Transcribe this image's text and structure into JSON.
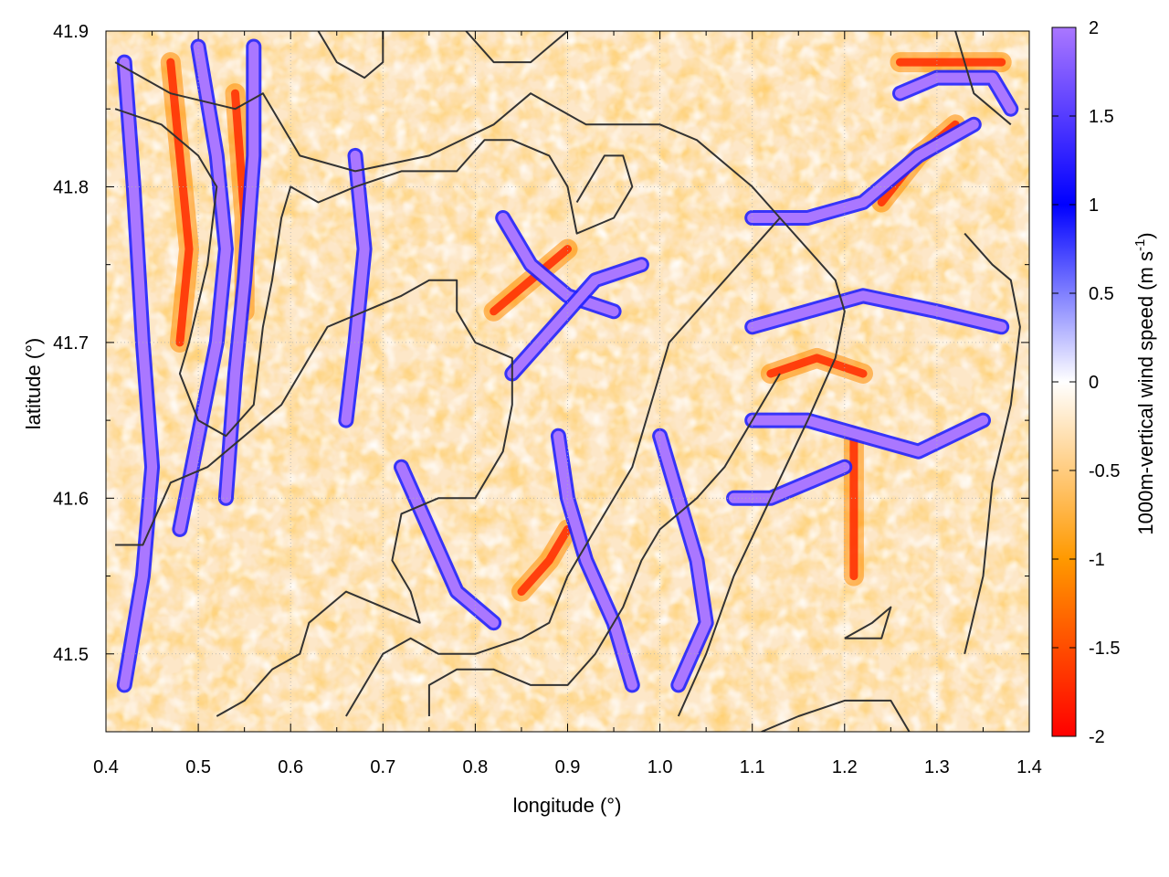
{
  "chart_data": {
    "type": "heatmap",
    "title": "",
    "xlabel": "longitude (°)",
    "ylabel": "latitude (°)",
    "xlim": [
      0.4,
      1.4
    ],
    "ylim": [
      41.45,
      41.9
    ],
    "xticks": [
      "0.4",
      "0.5",
      "0.6",
      "0.7",
      "0.8",
      "0.9",
      "1.0",
      "1.1",
      "1.2",
      "1.3",
      "1.4"
    ],
    "xtick_values": [
      0.4,
      0.5,
      0.6,
      0.7,
      0.8,
      0.9,
      1.0,
      1.1,
      1.2,
      1.3,
      1.4
    ],
    "yticks": [
      "41.5",
      "41.6",
      "41.7",
      "41.8",
      "41.9"
    ],
    "ytick_values": [
      41.5,
      41.6,
      41.7,
      41.8,
      41.9
    ],
    "grid": true,
    "colorbar": {
      "label_main": "1000m-vertical wind speed (m s",
      "label_sup": "-1",
      "label_end": ")",
      "range": [
        -2,
        2
      ],
      "ticks": [
        "-2",
        "-1.5",
        "-1",
        "-0.5",
        "0",
        "0.5",
        "1",
        "1.5",
        "2"
      ],
      "tick_values": [
        -2,
        -1.5,
        -1,
        -0.5,
        0,
        0.5,
        1,
        1.5,
        2
      ],
      "stops": [
        {
          "value": -2,
          "color": "#ff0000"
        },
        {
          "value": -1,
          "color": "#ff9900"
        },
        {
          "value": 0,
          "color": "#ffffff"
        },
        {
          "value": 1,
          "color": "#0000ff"
        },
        {
          "value": 2,
          "color": "#aa77ff"
        }
      ]
    },
    "contour_color": "#333333",
    "field_description_visible": "vertical wind speed mostly between -0.5 and 0 (light orange) with narrow bands of strong updraft (purple, ~2) and downdraft (red, ~-2)",
    "updraft_bands": [
      [
        [
          0.42,
          41.88
        ],
        [
          0.43,
          41.8
        ],
        [
          0.44,
          41.7
        ],
        [
          0.45,
          41.62
        ],
        [
          0.44,
          41.55
        ],
        [
          0.42,
          41.48
        ]
      ],
      [
        [
          0.5,
          41.89
        ],
        [
          0.52,
          41.82
        ],
        [
          0.53,
          41.76
        ],
        [
          0.52,
          41.7
        ],
        [
          0.5,
          41.64
        ],
        [
          0.48,
          41.58
        ]
      ],
      [
        [
          0.56,
          41.89
        ],
        [
          0.56,
          41.82
        ],
        [
          0.55,
          41.74
        ],
        [
          0.54,
          41.68
        ],
        [
          0.53,
          41.6
        ]
      ],
      [
        [
          0.67,
          41.82
        ],
        [
          0.68,
          41.76
        ],
        [
          0.67,
          41.7
        ],
        [
          0.66,
          41.65
        ]
      ],
      [
        [
          0.72,
          41.62
        ],
        [
          0.75,
          41.58
        ],
        [
          0.78,
          41.54
        ],
        [
          0.82,
          41.52
        ]
      ],
      [
        [
          0.83,
          41.78
        ],
        [
          0.86,
          41.75
        ],
        [
          0.9,
          41.73
        ],
        [
          0.95,
          41.72
        ]
      ],
      [
        [
          0.84,
          41.68
        ],
        [
          0.87,
          41.7
        ],
        [
          0.9,
          41.72
        ],
        [
          0.93,
          41.74
        ],
        [
          0.98,
          41.75
        ]
      ],
      [
        [
          0.89,
          41.64
        ],
        [
          0.9,
          41.6
        ],
        [
          0.92,
          41.56
        ],
        [
          0.95,
          41.52
        ],
        [
          0.97,
          41.48
        ]
      ],
      [
        [
          1.0,
          41.64
        ],
        [
          1.02,
          41.6
        ],
        [
          1.04,
          41.56
        ],
        [
          1.05,
          41.52
        ],
        [
          1.02,
          41.48
        ]
      ],
      [
        [
          1.1,
          41.78
        ],
        [
          1.16,
          41.78
        ],
        [
          1.22,
          41.79
        ],
        [
          1.28,
          41.82
        ],
        [
          1.34,
          41.84
        ]
      ],
      [
        [
          1.1,
          41.71
        ],
        [
          1.16,
          41.72
        ],
        [
          1.22,
          41.73
        ],
        [
          1.3,
          41.72
        ],
        [
          1.37,
          41.71
        ]
      ],
      [
        [
          1.1,
          41.65
        ],
        [
          1.16,
          41.65
        ],
        [
          1.22,
          41.64
        ],
        [
          1.28,
          41.63
        ],
        [
          1.35,
          41.65
        ]
      ],
      [
        [
          1.08,
          41.6
        ],
        [
          1.12,
          41.6
        ],
        [
          1.16,
          41.61
        ],
        [
          1.2,
          41.62
        ]
      ],
      [
        [
          1.26,
          41.86
        ],
        [
          1.3,
          41.87
        ],
        [
          1.36,
          41.87
        ],
        [
          1.38,
          41.85
        ]
      ]
    ],
    "downdraft_bands": [
      [
        [
          0.47,
          41.88
        ],
        [
          0.48,
          41.82
        ],
        [
          0.49,
          41.76
        ],
        [
          0.48,
          41.7
        ]
      ],
      [
        [
          0.54,
          41.86
        ],
        [
          0.55,
          41.78
        ],
        [
          0.55,
          41.72
        ]
      ],
      [
        [
          0.82,
          41.72
        ],
        [
          0.86,
          41.74
        ],
        [
          0.9,
          41.76
        ]
      ],
      [
        [
          0.85,
          41.54
        ],
        [
          0.88,
          41.56
        ],
        [
          0.9,
          41.58
        ]
      ],
      [
        [
          1.21,
          41.64
        ],
        [
          1.21,
          41.6
        ],
        [
          1.21,
          41.55
        ]
      ],
      [
        [
          1.26,
          41.88
        ],
        [
          1.32,
          41.88
        ],
        [
          1.37,
          41.88
        ]
      ],
      [
        [
          1.24,
          41.79
        ],
        [
          1.28,
          41.82
        ],
        [
          1.32,
          41.84
        ]
      ],
      [
        [
          1.12,
          41.68
        ],
        [
          1.17,
          41.69
        ],
        [
          1.22,
          41.68
        ]
      ]
    ],
    "contours": [
      [
        [
          0.41,
          41.88
        ],
        [
          0.47,
          41.86
        ],
        [
          0.54,
          41.85
        ],
        [
          0.57,
          41.86
        ],
        [
          0.61,
          41.82
        ],
        [
          0.67,
          41.81
        ],
        [
          0.75,
          41.82
        ],
        [
          0.82,
          41.84
        ],
        [
          0.86,
          41.86
        ],
        [
          0.92,
          41.84
        ],
        [
          1.0,
          41.84
        ],
        [
          1.04,
          41.83
        ],
        [
          1.08,
          41.81
        ],
        [
          1.1,
          41.8
        ],
        [
          1.13,
          41.78
        ],
        [
          1.16,
          41.76
        ],
        [
          1.19,
          41.74
        ],
        [
          1.2,
          41.72
        ],
        [
          1.19,
          41.69
        ],
        [
          1.16,
          41.65
        ],
        [
          1.12,
          41.6
        ],
        [
          1.08,
          41.55
        ],
        [
          1.05,
          41.5
        ],
        [
          1.02,
          41.46
        ]
      ],
      [
        [
          0.41,
          41.85
        ],
        [
          0.46,
          41.84
        ],
        [
          0.5,
          41.82
        ],
        [
          0.52,
          41.8
        ],
        [
          0.51,
          41.75
        ],
        [
          0.49,
          41.7
        ],
        [
          0.48,
          41.68
        ],
        [
          0.5,
          41.65
        ],
        [
          0.53,
          41.64
        ],
        [
          0.56,
          41.66
        ],
        [
          0.57,
          41.71
        ],
        [
          0.58,
          41.74
        ],
        [
          0.59,
          41.78
        ],
        [
          0.6,
          41.8
        ],
        [
          0.63,
          41.79
        ],
        [
          0.67,
          41.8
        ],
        [
          0.72,
          41.81
        ],
        [
          0.78,
          41.81
        ],
        [
          0.81,
          41.83
        ],
        [
          0.84,
          41.83
        ],
        [
          0.88,
          41.82
        ],
        [
          0.9,
          41.8
        ],
        [
          0.91,
          41.77
        ],
        [
          0.95,
          41.78
        ],
        [
          0.97,
          41.8
        ],
        [
          0.96,
          41.82
        ],
        [
          0.94,
          41.82
        ],
        [
          0.91,
          41.79
        ]
      ],
      [
        [
          0.41,
          41.57
        ],
        [
          0.44,
          41.57
        ],
        [
          0.47,
          41.61
        ],
        [
          0.51,
          41.62
        ],
        [
          0.55,
          41.64
        ],
        [
          0.59,
          41.66
        ],
        [
          0.62,
          41.69
        ],
        [
          0.64,
          41.71
        ],
        [
          0.68,
          41.72
        ],
        [
          0.72,
          41.73
        ],
        [
          0.75,
          41.74
        ],
        [
          0.78,
          41.74
        ],
        [
          0.78,
          41.72
        ],
        [
          0.8,
          41.7
        ],
        [
          0.84,
          41.69
        ],
        [
          0.84,
          41.66
        ],
        [
          0.83,
          41.63
        ],
        [
          0.8,
          41.6
        ],
        [
          0.76,
          41.6
        ],
        [
          0.72,
          41.59
        ],
        [
          0.71,
          41.56
        ],
        [
          0.73,
          41.54
        ],
        [
          0.74,
          41.52
        ],
        [
          0.7,
          41.53
        ],
        [
          0.66,
          41.54
        ],
        [
          0.62,
          41.52
        ],
        [
          0.61,
          41.5
        ],
        [
          0.58,
          41.49
        ],
        [
          0.55,
          41.47
        ],
        [
          0.52,
          41.46
        ]
      ],
      [
        [
          0.66,
          41.46
        ],
        [
          0.7,
          41.5
        ],
        [
          0.73,
          41.51
        ],
        [
          0.76,
          41.5
        ],
        [
          0.8,
          41.5
        ],
        [
          0.85,
          41.51
        ],
        [
          0.88,
          41.52
        ],
        [
          0.9,
          41.55
        ],
        [
          0.93,
          41.58
        ],
        [
          0.95,
          41.6
        ],
        [
          0.97,
          41.62
        ],
        [
          0.99,
          41.66
        ],
        [
          1.01,
          41.7
        ],
        [
          1.04,
          41.72
        ],
        [
          1.07,
          41.74
        ],
        [
          1.1,
          41.76
        ],
        [
          1.13,
          41.78
        ]
      ],
      [
        [
          0.75,
          41.46
        ],
        [
          0.75,
          41.48
        ],
        [
          0.78,
          41.49
        ],
        [
          0.82,
          41.49
        ],
        [
          0.86,
          41.48
        ],
        [
          0.9,
          41.48
        ],
        [
          0.93,
          41.5
        ],
        [
          0.96,
          41.53
        ],
        [
          0.98,
          41.56
        ],
        [
          1.0,
          41.58
        ],
        [
          1.04,
          41.6
        ],
        [
          1.07,
          41.62
        ],
        [
          1.1,
          41.65
        ],
        [
          1.13,
          41.68
        ]
      ],
      [
        [
          1.11,
          41.45
        ],
        [
          1.15,
          41.46
        ],
        [
          1.2,
          41.47
        ],
        [
          1.25,
          41.47
        ],
        [
          1.27,
          41.45
        ]
      ],
      [
        [
          1.2,
          41.51
        ],
        [
          1.24,
          41.51
        ],
        [
          1.25,
          41.53
        ],
        [
          1.23,
          41.52
        ],
        [
          1.2,
          41.51
        ]
      ],
      [
        [
          1.33,
          41.77
        ],
        [
          1.36,
          41.75
        ],
        [
          1.38,
          41.74
        ],
        [
          1.39,
          41.71
        ],
        [
          1.38,
          41.66
        ],
        [
          1.36,
          41.61
        ],
        [
          1.35,
          41.55
        ],
        [
          1.33,
          41.5
        ]
      ],
      [
        [
          1.32,
          41.9
        ],
        [
          1.33,
          41.88
        ],
        [
          1.34,
          41.86
        ],
        [
          1.38,
          41.84
        ]
      ],
      [
        [
          0.63,
          41.9
        ],
        [
          0.65,
          41.88
        ],
        [
          0.68,
          41.87
        ],
        [
          0.7,
          41.88
        ],
        [
          0.7,
          41.9
        ]
      ],
      [
        [
          0.79,
          41.9
        ],
        [
          0.82,
          41.88
        ],
        [
          0.86,
          41.88
        ],
        [
          0.88,
          41.89
        ],
        [
          0.9,
          41.9
        ]
      ]
    ]
  }
}
